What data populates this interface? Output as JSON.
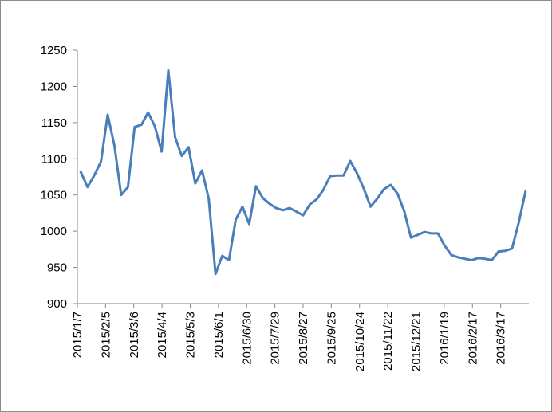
{
  "chart_data": {
    "type": "line",
    "title": "",
    "xlabel": "",
    "ylabel": "",
    "ylim": [
      900,
      1250
    ],
    "yticks": [
      900,
      950,
      1000,
      1050,
      1100,
      1150,
      1200,
      1250
    ],
    "ytick_labels": [
      "900",
      "950",
      "1000",
      "1050",
      "1100",
      "1150",
      "1200",
      "1250"
    ],
    "xtick_labels": [
      "2015/1/7",
      "2015/2/5",
      "2015/3/6",
      "2015/4/4",
      "2015/5/3",
      "2015/6/1",
      "2015/6/30",
      "2015/7/29",
      "2015/8/27",
      "2015/9/25",
      "2015/10/24",
      "2015/11/22",
      "2015/12/21",
      "2016/1/19",
      "2016/2/17",
      "2016/3/17"
    ],
    "grid": false,
    "legend": "none",
    "line_color": "#4a7ebb",
    "series": [
      {
        "values": [
          1082,
          1061,
          1077,
          1096,
          1161,
          1118,
          1050,
          1061,
          1144,
          1147,
          1164,
          1145,
          1110,
          1222,
          1130,
          1104,
          1116,
          1066,
          1084,
          1045,
          941,
          966,
          960,
          1016,
          1034,
          1010,
          1062,
          1046,
          1038,
          1032,
          1029,
          1032,
          1027,
          1022,
          1037,
          1044,
          1057,
          1076,
          1077,
          1077,
          1097,
          1080,
          1059,
          1034,
          1045,
          1058,
          1064,
          1052,
          1028,
          991,
          995,
          999,
          997,
          997,
          980,
          967,
          964,
          962,
          960,
          963,
          962,
          960,
          972,
          973,
          976,
          1012,
          1055
        ]
      }
    ]
  }
}
